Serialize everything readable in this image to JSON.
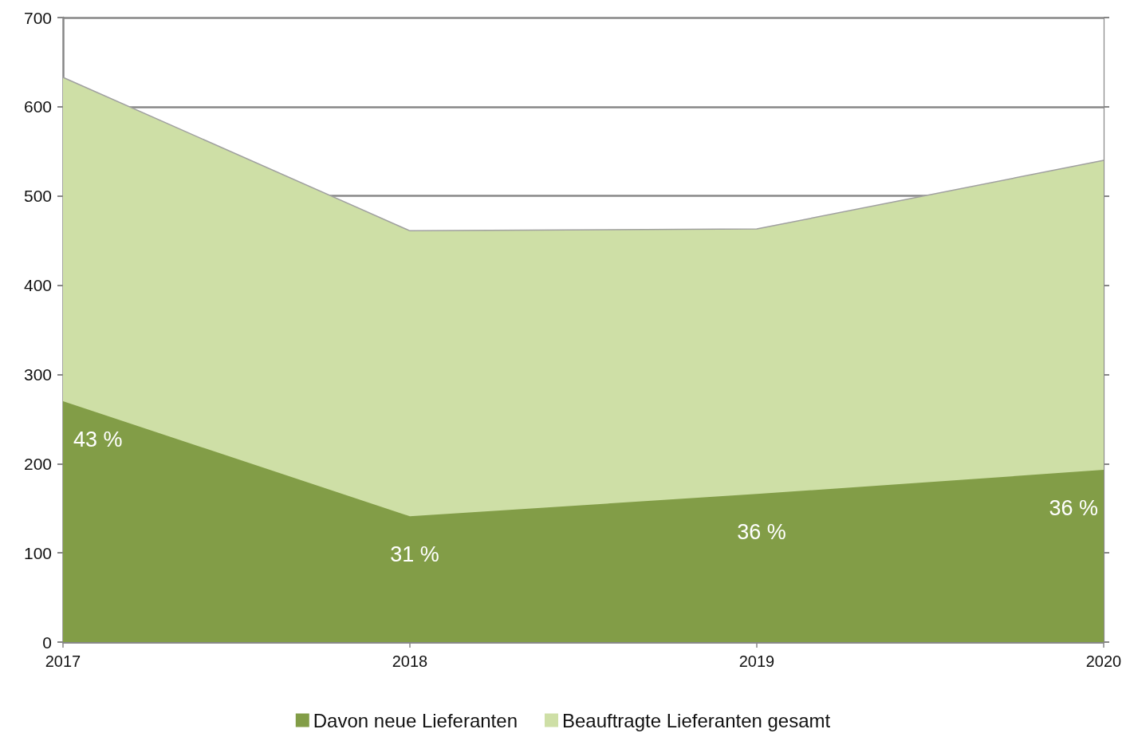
{
  "chart_data": {
    "type": "area",
    "categories": [
      "2017",
      "2018",
      "2019",
      "2020"
    ],
    "series": [
      {
        "name": "Davon neue Lieferanten",
        "color": "#829d47",
        "values": [
          270,
          141,
          166,
          193
        ]
      },
      {
        "name": "Beauftragte Lieferanten gesamt",
        "color": "#cedfa6",
        "values": [
          633,
          461,
          463,
          540
        ]
      }
    ],
    "annotations": [
      {
        "text": "43 %",
        "x": "2017",
        "y": 270
      },
      {
        "text": "31 %",
        "x": "2018",
        "y": 141
      },
      {
        "text": "36 %",
        "x": "2019",
        "y": 166
      },
      {
        "text": "36 %",
        "x": "2020",
        "y": 193
      }
    ],
    "ylim": [
      0,
      700
    ],
    "yticks": [
      0,
      100,
      200,
      300,
      400,
      500,
      600,
      700
    ],
    "grid": "y",
    "legend": "bottom"
  }
}
